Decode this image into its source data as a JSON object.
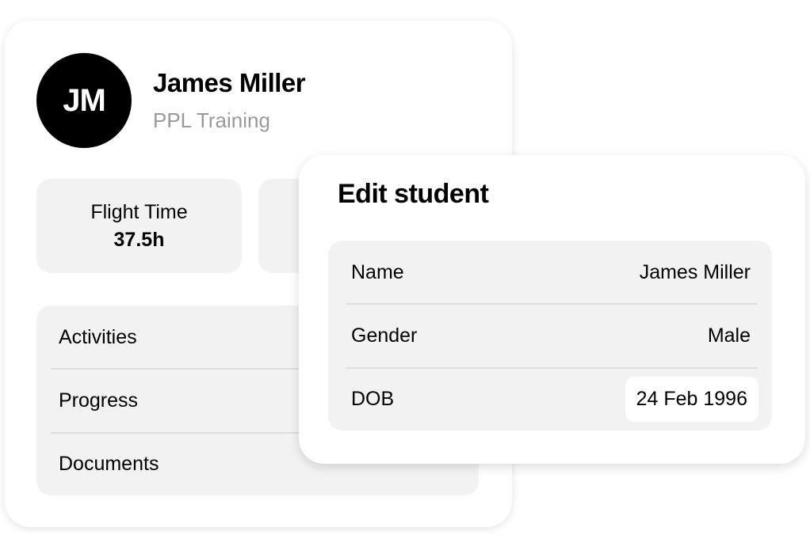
{
  "profile": {
    "initials": "JM",
    "name": "James Miller",
    "subtitle": "PPL Training",
    "stats": [
      {
        "label": "Flight Time",
        "value": "37.5h"
      }
    ],
    "menu": [
      {
        "label": "Activities"
      },
      {
        "label": "Progress"
      },
      {
        "label": "Documents"
      }
    ]
  },
  "edit_dialog": {
    "title": "Edit student",
    "fields": [
      {
        "label": "Name",
        "value": "James Miller"
      },
      {
        "label": "Gender",
        "value": "Male"
      },
      {
        "label": "DOB",
        "value": "24 Feb 1996"
      }
    ]
  }
}
